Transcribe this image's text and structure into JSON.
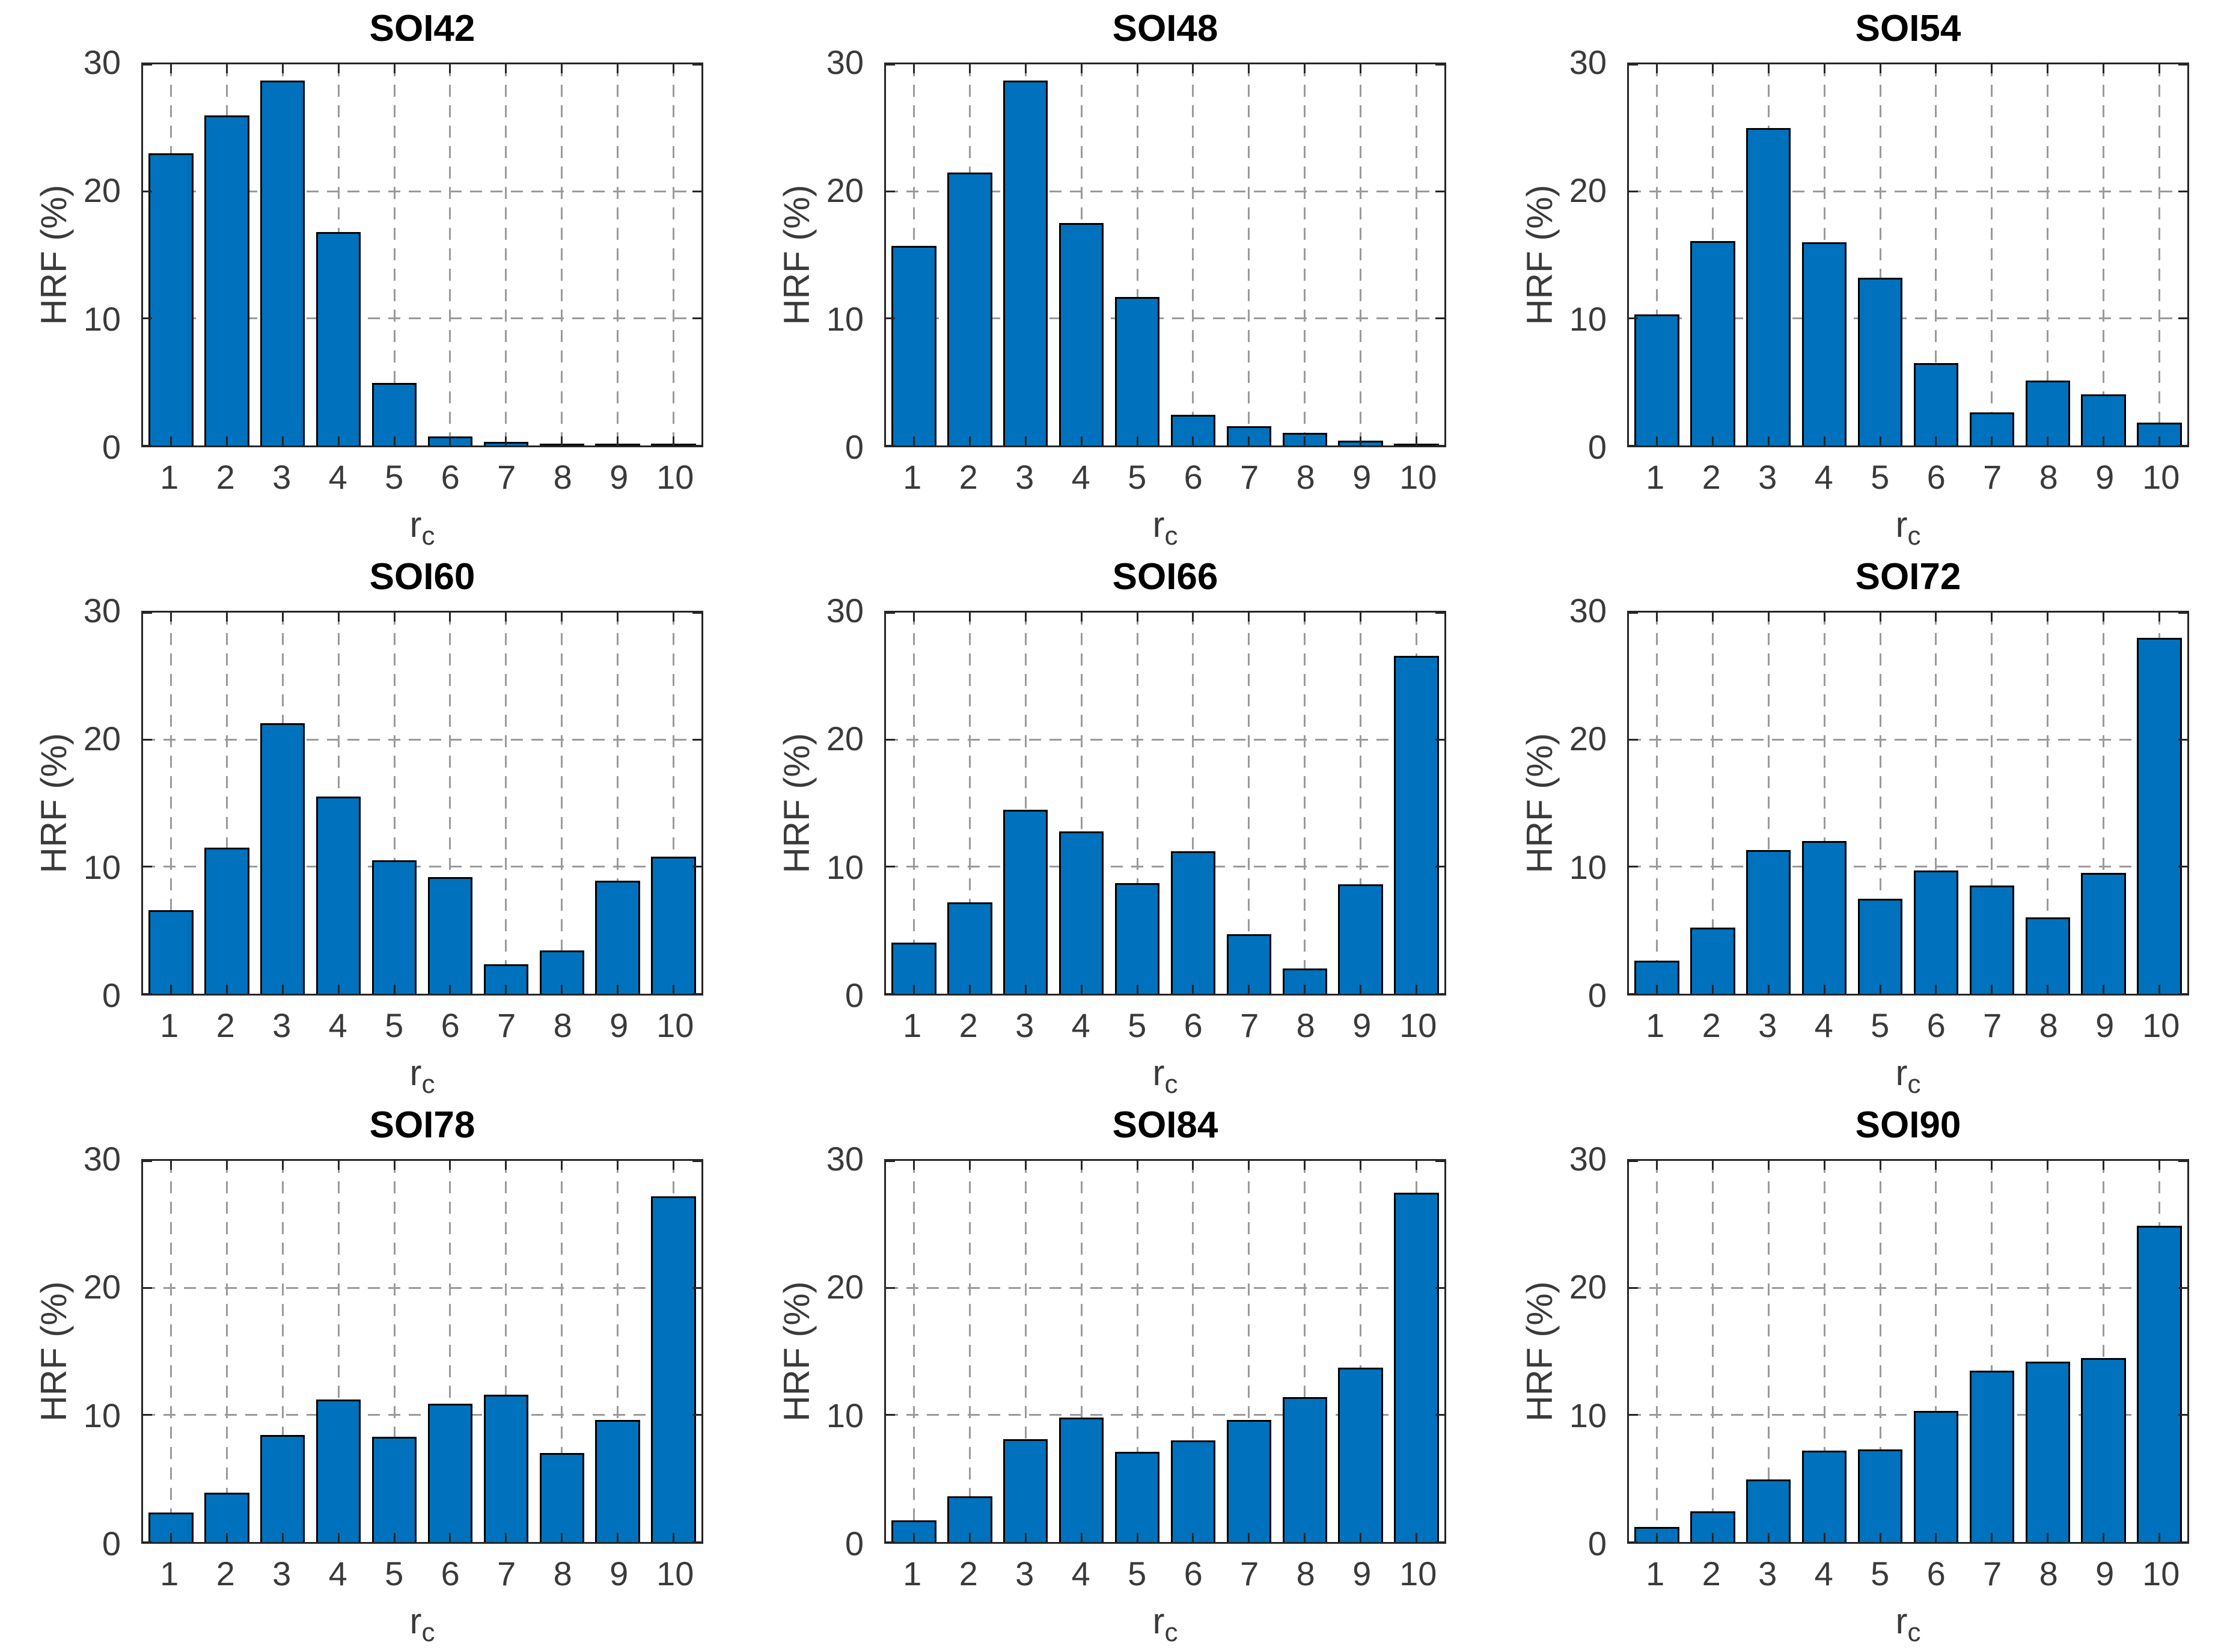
{
  "figure": {
    "background": "#ffffff",
    "bar_color": "#0072BD",
    "bar_edge_color": "#000000",
    "axis_color": "#262626",
    "grid_color": "#9a9a9a",
    "ylabel": "HRF (%)",
    "xlabel_main": "r",
    "xlabel_sub": "c",
    "ylim": [
      0,
      30
    ],
    "yticks": [
      "0",
      "10",
      "20",
      "30"
    ],
    "categories": [
      "1",
      "2",
      "3",
      "4",
      "5",
      "6",
      "7",
      "8",
      "9",
      "10"
    ]
  },
  "chart_data": [
    {
      "type": "bar",
      "title": "SOI42",
      "categories": [
        "1",
        "2",
        "3",
        "4",
        "5",
        "6",
        "7",
        "8",
        "9",
        "10"
      ],
      "values": [
        23.0,
        26.0,
        28.7,
        16.8,
        4.9,
        0.7,
        0.3,
        0.1,
        0.1,
        0.05
      ],
      "xlabel": "r_c",
      "ylabel": "HRF (%)",
      "ylim": [
        0,
        30
      ],
      "yticks": [
        0,
        10,
        20,
        30
      ],
      "grid": "dashed"
    },
    {
      "type": "bar",
      "title": "SOI48",
      "categories": [
        "1",
        "2",
        "3",
        "4",
        "5",
        "6",
        "7",
        "8",
        "9",
        "10"
      ],
      "values": [
        15.7,
        21.5,
        28.7,
        17.5,
        11.7,
        2.4,
        1.5,
        1.0,
        0.4,
        0.1
      ],
      "xlabel": "r_c",
      "ylabel": "HRF (%)",
      "ylim": [
        0,
        30
      ],
      "yticks": [
        0,
        10,
        20,
        30
      ],
      "grid": "dashed"
    },
    {
      "type": "bar",
      "title": "SOI54",
      "categories": [
        "1",
        "2",
        "3",
        "4",
        "5",
        "6",
        "7",
        "8",
        "9",
        "10"
      ],
      "values": [
        10.3,
        16.1,
        25.0,
        16.0,
        13.2,
        6.5,
        2.6,
        5.1,
        4.0,
        1.8
      ],
      "xlabel": "r_c",
      "ylabel": "HRF (%)",
      "ylim": [
        0,
        30
      ],
      "yticks": [
        0,
        10,
        20,
        30
      ],
      "grid": "dashed"
    },
    {
      "type": "bar",
      "title": "SOI60",
      "categories": [
        "1",
        "2",
        "3",
        "4",
        "5",
        "6",
        "7",
        "8",
        "9",
        "10"
      ],
      "values": [
        6.6,
        11.5,
        21.3,
        15.5,
        10.5,
        9.2,
        2.3,
        3.4,
        8.9,
        10.8
      ],
      "xlabel": "r_c",
      "ylabel": "HRF (%)",
      "ylim": [
        0,
        30
      ],
      "yticks": [
        0,
        10,
        20,
        30
      ],
      "grid": "dashed"
    },
    {
      "type": "bar",
      "title": "SOI66",
      "categories": [
        "1",
        "2",
        "3",
        "4",
        "5",
        "6",
        "7",
        "8",
        "9",
        "10"
      ],
      "values": [
        4.0,
        7.2,
        14.5,
        12.8,
        8.7,
        11.2,
        4.7,
        2.0,
        8.6,
        26.6
      ],
      "xlabel": "r_c",
      "ylabel": "HRF (%)",
      "ylim": [
        0,
        30
      ],
      "yticks": [
        0,
        10,
        20,
        30
      ],
      "grid": "dashed"
    },
    {
      "type": "bar",
      "title": "SOI72",
      "categories": [
        "1",
        "2",
        "3",
        "4",
        "5",
        "6",
        "7",
        "8",
        "9",
        "10"
      ],
      "values": [
        2.6,
        5.2,
        11.3,
        12.0,
        7.5,
        9.7,
        8.5,
        6.0,
        9.5,
        28.0
      ],
      "xlabel": "r_c",
      "ylabel": "HRF (%)",
      "ylim": [
        0,
        30
      ],
      "yticks": [
        0,
        10,
        20,
        30
      ],
      "grid": "dashed"
    },
    {
      "type": "bar",
      "title": "SOI78",
      "categories": [
        "1",
        "2",
        "3",
        "4",
        "5",
        "6",
        "7",
        "8",
        "9",
        "10"
      ],
      "values": [
        2.3,
        3.9,
        8.4,
        11.2,
        8.3,
        10.9,
        11.6,
        7.0,
        9.6,
        27.2
      ],
      "xlabel": "r_c",
      "ylabel": "HRF (%)",
      "ylim": [
        0,
        30
      ],
      "yticks": [
        0,
        10,
        20,
        30
      ],
      "grid": "dashed"
    },
    {
      "type": "bar",
      "title": "SOI84",
      "categories": [
        "1",
        "2",
        "3",
        "4",
        "5",
        "6",
        "7",
        "8",
        "9",
        "10"
      ],
      "values": [
        1.7,
        3.6,
        8.1,
        9.8,
        7.1,
        8.0,
        9.6,
        11.4,
        13.7,
        27.5
      ],
      "xlabel": "r_c",
      "ylabel": "HRF (%)",
      "ylim": [
        0,
        30
      ],
      "yticks": [
        0,
        10,
        20,
        30
      ],
      "grid": "dashed"
    },
    {
      "type": "bar",
      "title": "SOI90",
      "categories": [
        "1",
        "2",
        "3",
        "4",
        "5",
        "6",
        "7",
        "8",
        "9",
        "10"
      ],
      "values": [
        1.2,
        2.4,
        4.9,
        7.2,
        7.3,
        10.3,
        13.5,
        14.2,
        14.5,
        24.9
      ],
      "xlabel": "r_c",
      "ylabel": "HRF (%)",
      "ylim": [
        0,
        30
      ],
      "yticks": [
        0,
        10,
        20,
        30
      ],
      "grid": "dashed"
    }
  ]
}
